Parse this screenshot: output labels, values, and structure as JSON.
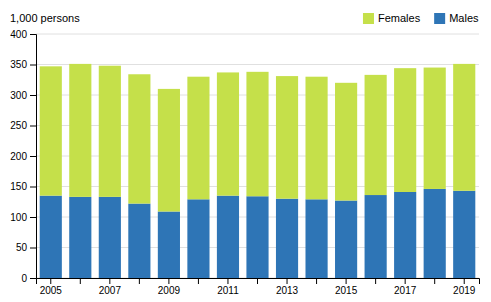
{
  "chart_data": {
    "type": "bar",
    "stacked": true,
    "ylabel": "1,000 persons",
    "categories": [
      "2005",
      null,
      "2007",
      null,
      "2009",
      null,
      "2011",
      null,
      "2013",
      null,
      "2015",
      null,
      "2017",
      null,
      "2019"
    ],
    "series": [
      {
        "name": "Males",
        "color": "#2e75b6",
        "values": [
          135,
          133,
          133,
          122,
          109,
          129,
          135,
          134,
          130,
          129,
          127,
          136,
          141,
          146,
          143
        ]
      },
      {
        "name": "Females",
        "color": "#c5e04a",
        "values": [
          212,
          218,
          215,
          212,
          201,
          201,
          202,
          204,
          201,
          201,
          193,
          197,
          203,
          199,
          208
        ]
      }
    ],
    "ylim": [
      0,
      400
    ],
    "yticks": [
      0,
      50,
      100,
      150,
      200,
      250,
      300,
      350,
      400
    ],
    "grid": true,
    "legend": "upper right"
  }
}
